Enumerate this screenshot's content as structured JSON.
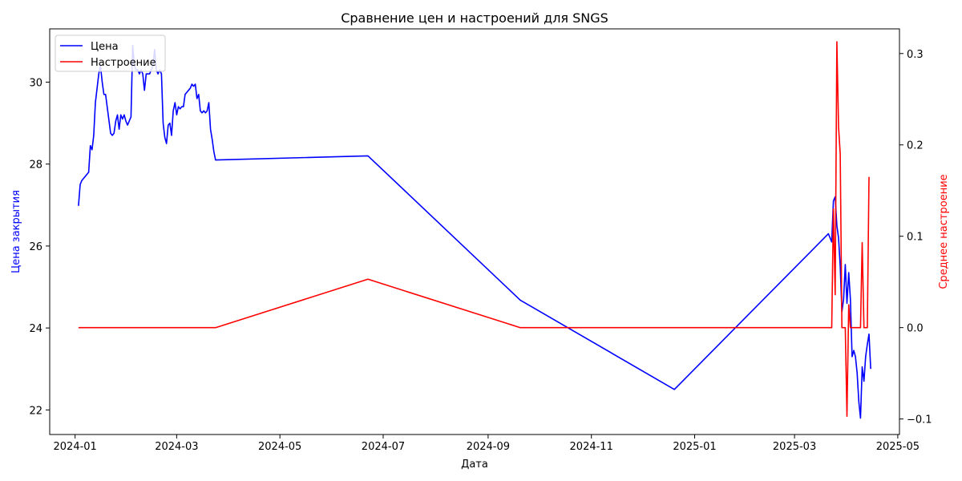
{
  "chart_data": {
    "type": "line",
    "title": "Сравнение цен и настроений для SNGS",
    "xlabel": "Дата",
    "ylabel_left": "Цена закрытия",
    "ylabel_right": "Среднее настроение",
    "xlim": [
      "2023-12-17",
      "2025-05-02"
    ],
    "ylim_left": [
      21.4,
      31.3
    ],
    "ylim_right": [
      -0.117,
      0.327
    ],
    "x_ticks": [
      "2024-01",
      "2024-03",
      "2024-05",
      "2024-07",
      "2024-09",
      "2024-11",
      "2025-01",
      "2025-03",
      "2025-05"
    ],
    "y_ticks_left": [
      22,
      24,
      26,
      28,
      30
    ],
    "y_ticks_right": [
      -0.1,
      0.0,
      0.1,
      0.2,
      0.3
    ],
    "grid": false,
    "legend": "top-left",
    "colors": {
      "price": "#0000ff",
      "sentiment": "#ff0000"
    },
    "series": [
      {
        "name": "Цена",
        "axis": "left",
        "points": [
          [
            "2024-01-03",
            26.98
          ],
          [
            "2024-01-04",
            27.5
          ],
          [
            "2024-01-05",
            27.6
          ],
          [
            "2024-01-09",
            27.8
          ],
          [
            "2024-01-10",
            28.45
          ],
          [
            "2024-01-11",
            28.35
          ],
          [
            "2024-01-12",
            28.7
          ],
          [
            "2024-01-13",
            29.5
          ],
          [
            "2024-01-15",
            30.2
          ],
          [
            "2024-01-16",
            30.4
          ],
          [
            "2024-01-17",
            30.0
          ],
          [
            "2024-01-18",
            29.7
          ],
          [
            "2024-01-19",
            29.7
          ],
          [
            "2024-01-22",
            28.75
          ],
          [
            "2024-01-23",
            28.7
          ],
          [
            "2024-01-24",
            28.75
          ],
          [
            "2024-01-25",
            29.05
          ],
          [
            "2024-01-26",
            29.2
          ],
          [
            "2024-01-27",
            28.85
          ],
          [
            "2024-01-28",
            29.2
          ],
          [
            "2024-01-29",
            29.1
          ],
          [
            "2024-01-30",
            29.2
          ],
          [
            "2024-01-31",
            29.05
          ],
          [
            "2024-02-01",
            28.95
          ],
          [
            "2024-02-02",
            29.05
          ],
          [
            "2024-02-03",
            29.15
          ],
          [
            "2024-02-04",
            30.9
          ],
          [
            "2024-02-05",
            30.4
          ],
          [
            "2024-02-06",
            30.3
          ],
          [
            "2024-02-07",
            30.3
          ],
          [
            "2024-02-08",
            30.2
          ],
          [
            "2024-02-09",
            30.3
          ],
          [
            "2024-02-10",
            30.2
          ],
          [
            "2024-02-11",
            29.8
          ],
          [
            "2024-02-12",
            30.2
          ],
          [
            "2024-02-13",
            30.2
          ],
          [
            "2024-02-14",
            30.2
          ],
          [
            "2024-02-15",
            30.3
          ],
          [
            "2024-02-16",
            30.4
          ],
          [
            "2024-02-17",
            30.8
          ],
          [
            "2024-02-18",
            30.3
          ],
          [
            "2024-02-19",
            30.2
          ],
          [
            "2024-02-20",
            30.3
          ],
          [
            "2024-02-21",
            30.2
          ],
          [
            "2024-02-22",
            29.0
          ],
          [
            "2024-02-23",
            28.65
          ],
          [
            "2024-02-24",
            28.5
          ],
          [
            "2024-02-25",
            28.95
          ],
          [
            "2024-02-26",
            29.0
          ],
          [
            "2024-02-27",
            28.7
          ],
          [
            "2024-02-28",
            29.3
          ],
          [
            "2024-02-29",
            29.5
          ],
          [
            "2024-03-01",
            29.2
          ],
          [
            "2024-03-02",
            29.4
          ],
          [
            "2024-03-03",
            29.35
          ],
          [
            "2024-03-04",
            29.4
          ],
          [
            "2024-03-05",
            29.4
          ],
          [
            "2024-03-06",
            29.7
          ],
          [
            "2024-03-07",
            29.75
          ],
          [
            "2024-03-08",
            29.8
          ],
          [
            "2024-03-09",
            29.85
          ],
          [
            "2024-03-10",
            29.95
          ],
          [
            "2024-03-11",
            29.9
          ],
          [
            "2024-03-12",
            29.95
          ],
          [
            "2024-03-13",
            29.6
          ],
          [
            "2024-03-14",
            29.7
          ],
          [
            "2024-03-15",
            29.3
          ],
          [
            "2024-03-16",
            29.25
          ],
          [
            "2024-03-17",
            29.3
          ],
          [
            "2024-03-18",
            29.25
          ],
          [
            "2024-03-19",
            29.3
          ],
          [
            "2024-03-20",
            29.5
          ],
          [
            "2024-03-21",
            28.85
          ],
          [
            "2024-03-22",
            28.6
          ],
          [
            "2024-03-23",
            28.3
          ],
          [
            "2024-03-24",
            28.1
          ],
          [
            "2024-06-22",
            28.2
          ],
          [
            "2024-09-20",
            24.68
          ],
          [
            "2024-12-20",
            22.5
          ],
          [
            "2025-03-21",
            26.3
          ],
          [
            "2025-03-23",
            26.1
          ],
          [
            "2025-03-24",
            27.1
          ],
          [
            "2025-03-25",
            27.2
          ],
          [
            "2025-03-26",
            26.5
          ],
          [
            "2025-03-27",
            26.2
          ],
          [
            "2025-03-28",
            25.5
          ],
          [
            "2025-03-29",
            24.4
          ],
          [
            "2025-03-30",
            24.7
          ],
          [
            "2025-03-31",
            25.55
          ],
          [
            "2025-04-01",
            24.6
          ],
          [
            "2025-04-02",
            25.35
          ],
          [
            "2025-04-03",
            24.7
          ],
          [
            "2025-04-04",
            23.3
          ],
          [
            "2025-04-05",
            23.45
          ],
          [
            "2025-04-06",
            23.3
          ],
          [
            "2025-04-07",
            22.9
          ],
          [
            "2025-04-08",
            22.2
          ],
          [
            "2025-04-09",
            21.8
          ],
          [
            "2025-04-10",
            23.05
          ],
          [
            "2025-04-11",
            22.7
          ],
          [
            "2025-04-12",
            23.3
          ],
          [
            "2025-04-13",
            23.6
          ],
          [
            "2025-04-14",
            23.85
          ],
          [
            "2025-04-15",
            23.0
          ]
        ]
      },
      {
        "name": "Настроение",
        "axis": "right",
        "points": [
          [
            "2024-01-03",
            0.0
          ],
          [
            "2024-03-24",
            0.0
          ],
          [
            "2024-06-22",
            0.053
          ],
          [
            "2024-09-20",
            0.0
          ],
          [
            "2025-03-23",
            0.0
          ],
          [
            "2025-03-24",
            0.13
          ],
          [
            "2025-03-25",
            0.036
          ],
          [
            "2025-03-26",
            0.313
          ],
          [
            "2025-03-27",
            0.22
          ],
          [
            "2025-03-28",
            0.19
          ],
          [
            "2025-03-29",
            0.0
          ],
          [
            "2025-03-30",
            0.0
          ],
          [
            "2025-03-31",
            0.0
          ],
          [
            "2025-04-01",
            -0.097
          ],
          [
            "2025-04-02",
            0.025
          ],
          [
            "2025-04-03",
            0.0
          ],
          [
            "2025-04-04",
            0.0
          ],
          [
            "2025-04-09",
            0.0
          ],
          [
            "2025-04-10",
            0.093
          ],
          [
            "2025-04-11",
            0.0
          ],
          [
            "2025-04-13",
            0.0
          ],
          [
            "2025-04-14",
            0.165
          ]
        ]
      }
    ]
  }
}
